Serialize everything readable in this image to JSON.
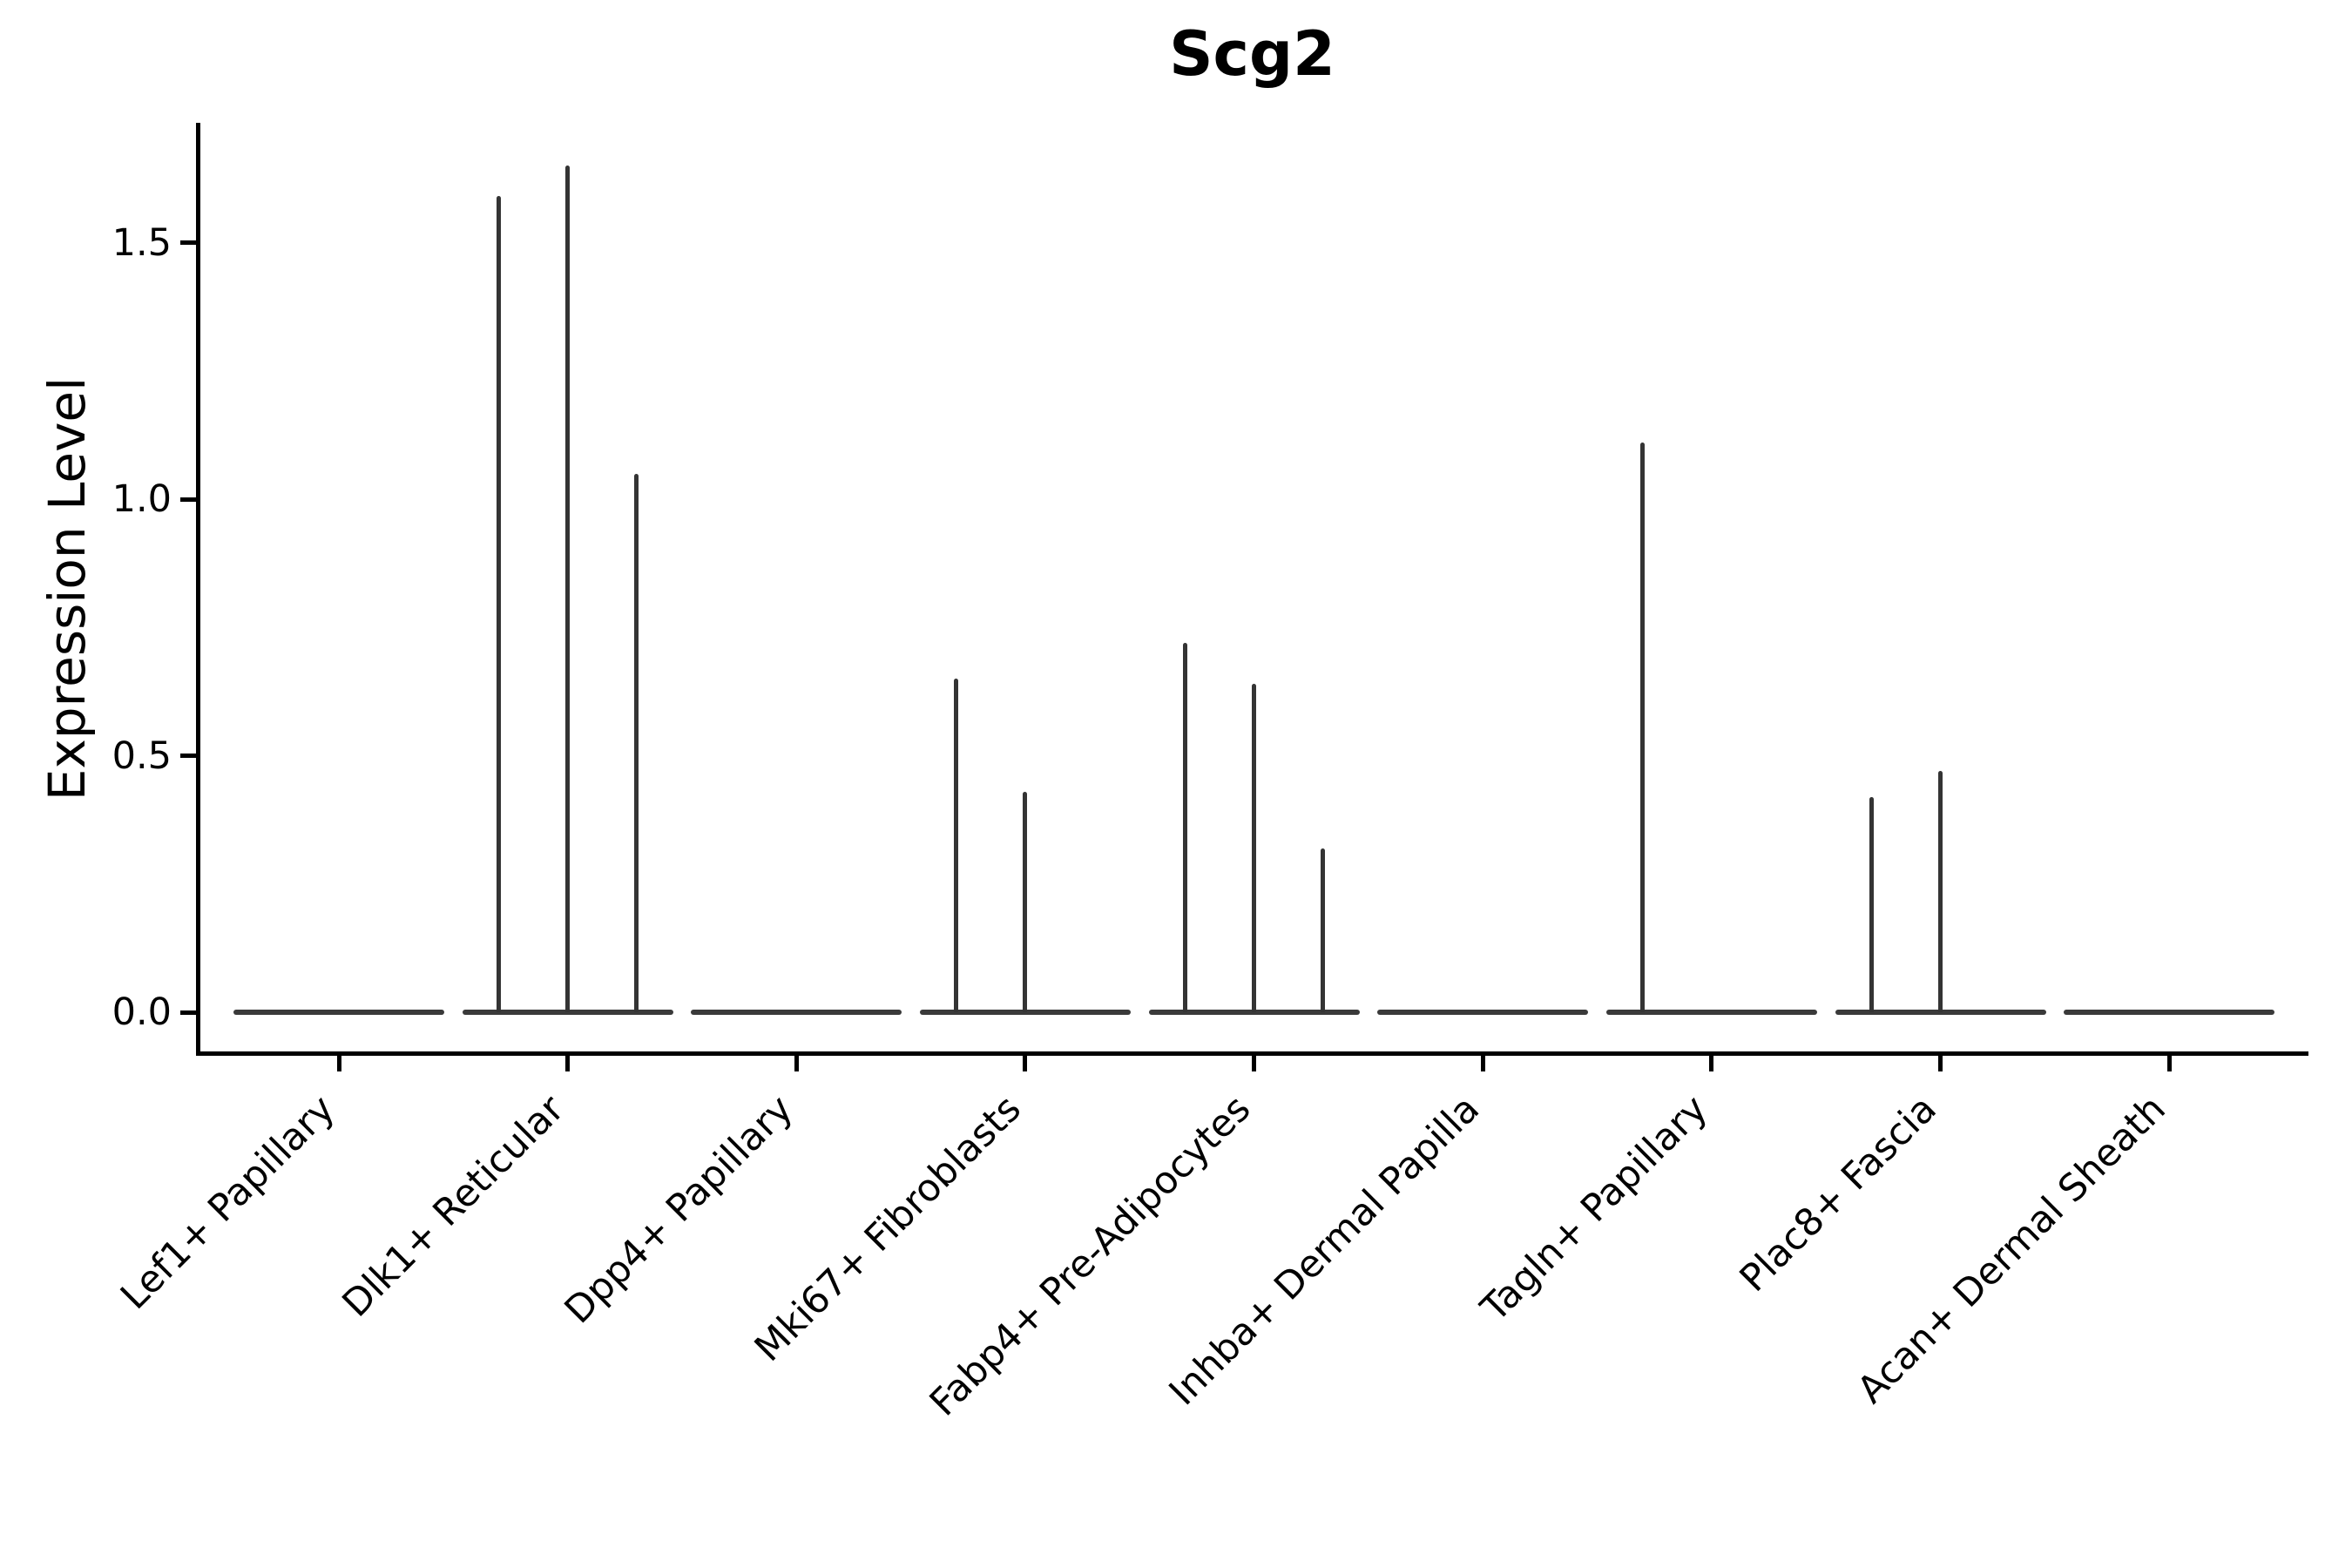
{
  "figure": {
    "background": "#ffffff"
  },
  "chart_data": {
    "type": "violin",
    "title": "Scg2",
    "ylabel": "Expression Level",
    "xlabel": "",
    "grid": false,
    "legend": "none",
    "ylim": [
      -0.08,
      1.73
    ],
    "yticks": [
      0.0,
      0.5,
      1.0,
      1.5
    ],
    "ytick_labels": [
      "0.0",
      "0.5",
      "1.0",
      "1.5"
    ],
    "categories": [
      "Lef1+ Papillary",
      "Dlk1+ Reticular",
      "Dpp4+ Papillary",
      "Mki67+ Fibroblasts",
      "Fabp4+ Pre-Adipocytes",
      "Inhba+ Dermal Papilla",
      "Tagln+ Papillary",
      "Plac8+ Fascia",
      "Acan+ Dermal Sheath"
    ],
    "groups": [
      {
        "category": "Lef1+ Papillary",
        "baseline_value": 0.0,
        "spikes": []
      },
      {
        "category": "Dlk1+ Reticular",
        "baseline_value": 0.0,
        "spikes": [
          {
            "slot": "left",
            "value": 1.59
          },
          {
            "slot": "center",
            "value": 1.65
          },
          {
            "slot": "right",
            "value": 1.05
          }
        ]
      },
      {
        "category": "Dpp4+ Papillary",
        "baseline_value": 0.0,
        "spikes": []
      },
      {
        "category": "Mki67+ Fibroblasts",
        "baseline_value": 0.0,
        "spikes": [
          {
            "slot": "left",
            "value": 0.65
          },
          {
            "slot": "center",
            "value": 0.43
          }
        ]
      },
      {
        "category": "Fabp4+ Pre-Adipocytes",
        "baseline_value": 0.0,
        "spikes": [
          {
            "slot": "left",
            "value": 0.72
          },
          {
            "slot": "center",
            "value": 0.64
          },
          {
            "slot": "right",
            "value": 0.32
          }
        ]
      },
      {
        "category": "Inhba+ Dermal Papilla",
        "baseline_value": 0.0,
        "spikes": []
      },
      {
        "category": "Tagln+ Papillary",
        "baseline_value": 0.0,
        "spikes": [
          {
            "slot": "left",
            "value": 1.11
          }
        ]
      },
      {
        "category": "Plac8+ Fascia",
        "baseline_value": 0.0,
        "spikes": [
          {
            "slot": "left",
            "value": 0.42
          },
          {
            "slot": "center",
            "value": 0.47
          }
        ]
      },
      {
        "category": "Acan+ Dermal Sheath",
        "baseline_value": 0.0,
        "spikes": []
      }
    ],
    "colors": {
      "violin_line": "#343434",
      "axis": "#000000",
      "text": "#000000",
      "background": "#ffffff"
    }
  }
}
